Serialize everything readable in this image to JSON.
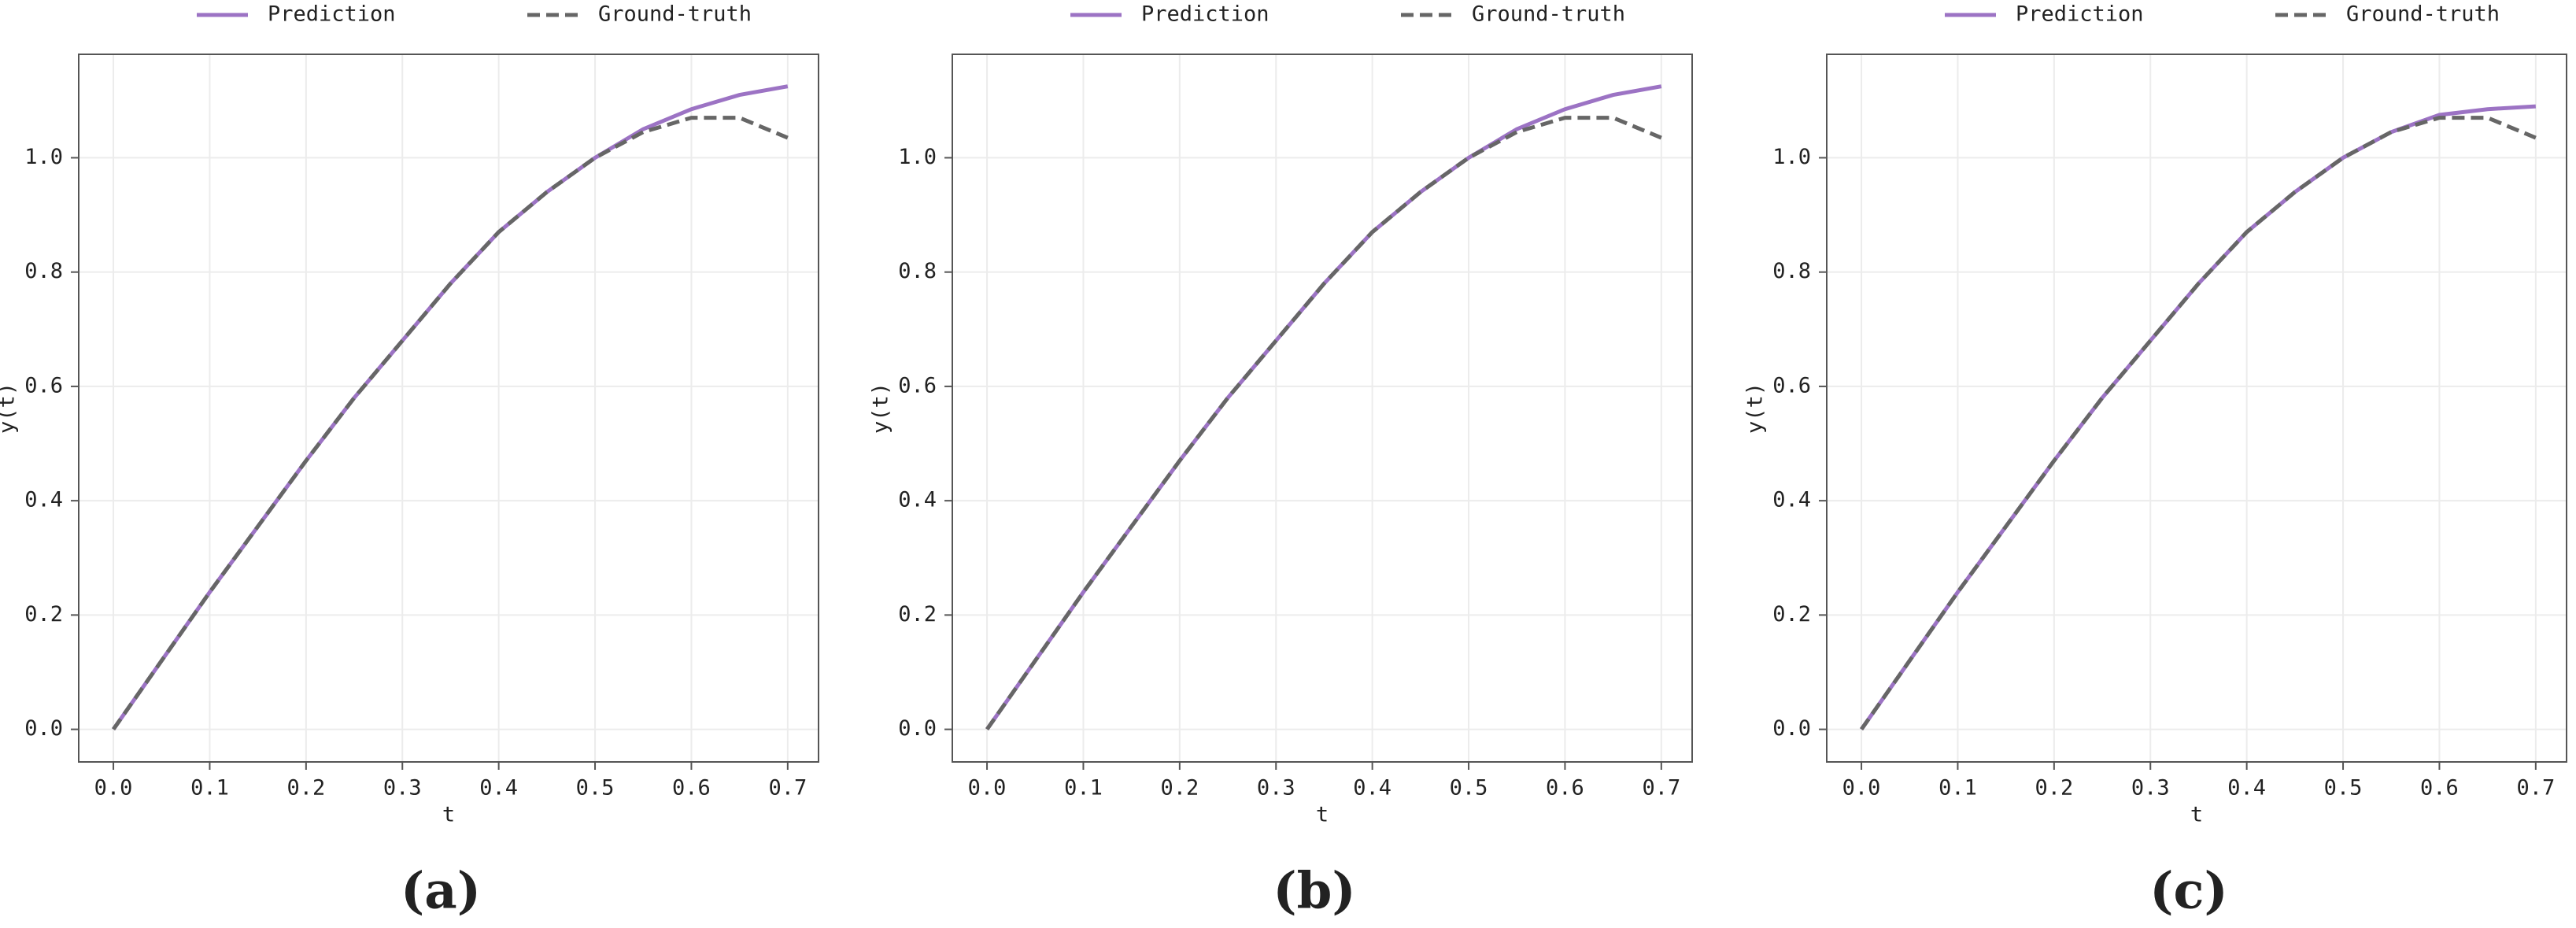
{
  "chart_data": [
    {
      "type": "line",
      "caption": "(a)",
      "xlabel": "t",
      "ylabel": "y(t)",
      "x": [
        0,
        0.05,
        0.1,
        0.15,
        0.2,
        0.25,
        0.3,
        0.35,
        0.4,
        0.45,
        0.5,
        0.55,
        0.6,
        0.65,
        0.7
      ],
      "series": [
        {
          "name": "Prediction",
          "color": "#9c73c4",
          "linestyle": "solid",
          "values": [
            0,
            0.12,
            0.24,
            0.355,
            0.47,
            0.58,
            0.68,
            0.78,
            0.87,
            0.94,
            1.0,
            1.05,
            1.085,
            1.11,
            1.125
          ]
        },
        {
          "name": "Ground-truth",
          "color": "#666666",
          "linestyle": "dashed",
          "values": [
            0,
            0.12,
            0.24,
            0.355,
            0.47,
            0.58,
            0.68,
            0.78,
            0.87,
            0.94,
            1.0,
            1.045,
            1.07,
            1.07,
            1.035
          ]
        }
      ],
      "xlim": [
        -0.036,
        0.732
      ],
      "ylim": [
        -0.057,
        1.181
      ],
      "xticks": [
        {
          "value": 0,
          "label": "0.0"
        },
        0.1,
        0.2,
        0.3,
        0.4,
        0.5,
        0.6,
        0.7
      ],
      "yticks": [
        {
          "value": 0,
          "label": "0.0"
        },
        0.2,
        0.4,
        0.6,
        0.8,
        {
          "value": 1,
          "label": "1.0"
        }
      ],
      "grid": true,
      "legend": "top"
    },
    {
      "type": "line",
      "caption": "(b)",
      "xlabel": "t",
      "ylabel": "y(t)",
      "x": [
        0,
        0.05,
        0.1,
        0.15,
        0.2,
        0.25,
        0.3,
        0.35,
        0.4,
        0.45,
        0.5,
        0.55,
        0.6,
        0.65,
        0.7
      ],
      "series": [
        {
          "name": "Prediction",
          "color": "#9c73c4",
          "linestyle": "solid",
          "values": [
            0,
            0.12,
            0.24,
            0.355,
            0.47,
            0.58,
            0.68,
            0.78,
            0.87,
            0.94,
            1.0,
            1.05,
            1.085,
            1.11,
            1.125
          ]
        },
        {
          "name": "Ground-truth",
          "color": "#666666",
          "linestyle": "dashed",
          "values": [
            0,
            0.12,
            0.24,
            0.355,
            0.47,
            0.58,
            0.68,
            0.78,
            0.87,
            0.94,
            1.0,
            1.045,
            1.07,
            1.07,
            1.035
          ]
        }
      ],
      "xlim": [
        -0.036,
        0.732
      ],
      "ylim": [
        -0.057,
        1.181
      ],
      "xticks": [
        {
          "value": 0,
          "label": "0.0"
        },
        0.1,
        0.2,
        0.3,
        0.4,
        0.5,
        0.6,
        0.7
      ],
      "yticks": [
        {
          "value": 0,
          "label": "0.0"
        },
        0.2,
        0.4,
        0.6,
        0.8,
        {
          "value": 1,
          "label": "1.0"
        }
      ],
      "grid": true,
      "legend": "top"
    },
    {
      "type": "line",
      "caption": "(c)",
      "xlabel": "t",
      "ylabel": "y(t)",
      "x": [
        0,
        0.05,
        0.1,
        0.15,
        0.2,
        0.25,
        0.3,
        0.35,
        0.4,
        0.45,
        0.5,
        0.55,
        0.6,
        0.65,
        0.7
      ],
      "series": [
        {
          "name": "Prediction",
          "color": "#9c73c4",
          "linestyle": "solid",
          "values": [
            0,
            0.12,
            0.24,
            0.355,
            0.47,
            0.58,
            0.68,
            0.78,
            0.87,
            0.94,
            1.0,
            1.045,
            1.075,
            1.085,
            1.09
          ]
        },
        {
          "name": "Ground-truth",
          "color": "#666666",
          "linestyle": "dashed",
          "values": [
            0,
            0.12,
            0.24,
            0.355,
            0.47,
            0.58,
            0.68,
            0.78,
            0.87,
            0.94,
            1.0,
            1.045,
            1.07,
            1.07,
            1.035
          ]
        }
      ],
      "xlim": [
        -0.036,
        0.732
      ],
      "ylim": [
        -0.057,
        1.181
      ],
      "xticks": [
        {
          "value": 0,
          "label": "0.0"
        },
        0.1,
        0.2,
        0.3,
        0.4,
        0.5,
        0.6,
        0.7
      ],
      "yticks": [
        {
          "value": 0,
          "label": "0.0"
        },
        0.2,
        0.4,
        0.6,
        0.8,
        {
          "value": 1,
          "label": "1.0"
        }
      ],
      "grid": true,
      "legend": "top"
    }
  ]
}
